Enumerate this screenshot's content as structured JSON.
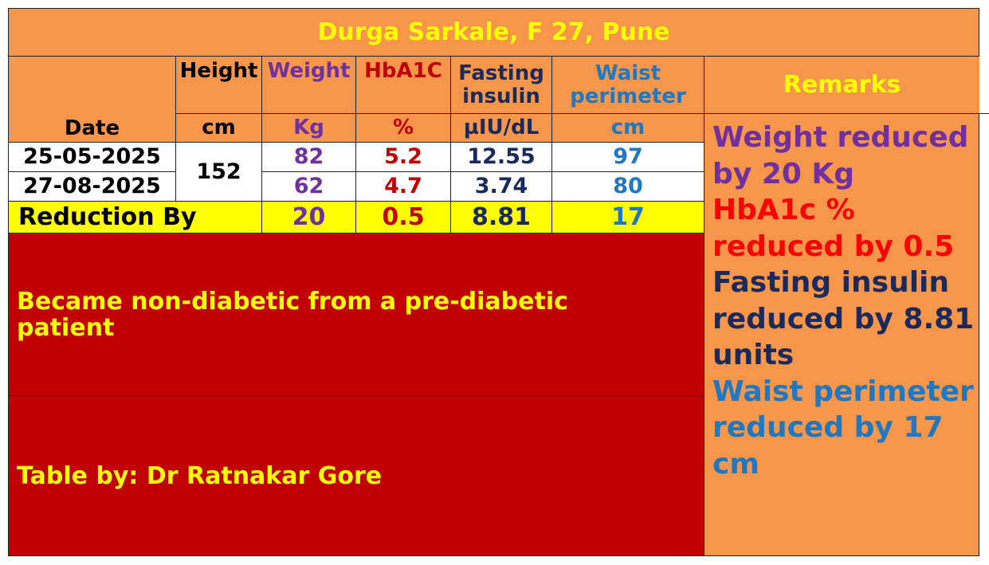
{
  "title": "Durga Sarkale, F 27, Pune",
  "headers": {
    "date": "Date",
    "height": "Height",
    "height_unit": "cm",
    "weight": "Weight",
    "weight_unit": "Kg",
    "hba1c": "HbA1C",
    "hba1c_unit": "%",
    "insulin_1": "Fasting",
    "insulin_2": "insulin",
    "insulin_unit": "µIU/dL",
    "waist_1": "Waist",
    "waist_2": "perimeter",
    "waist_unit": "cm",
    "remarks": "Remarks"
  },
  "rows": [
    {
      "date": "25-05-2025",
      "weight": "82",
      "hba1c": "5.2",
      "insulin": "12.55",
      "waist": "97"
    },
    {
      "date": "27-08-2025",
      "weight": "62",
      "hba1c": "4.7",
      "insulin": "3.74",
      "waist": "80"
    }
  ],
  "height": "152",
  "reduction": {
    "label": "Reduction By",
    "weight": "20",
    "hba1c": "0.5",
    "insulin": "8.81",
    "waist": "17"
  },
  "note": "Became non-diabetic from a pre-diabetic patient",
  "credit": "Table by: Dr Ratnakar Gore",
  "remarks": [
    "Weight reduced by 20 Kg",
    "HbA1c % reduced by 0.5",
    "Fasting insulin reduced by 8.81 units",
    "Waist perimeter reduced by 17 cm"
  ]
}
